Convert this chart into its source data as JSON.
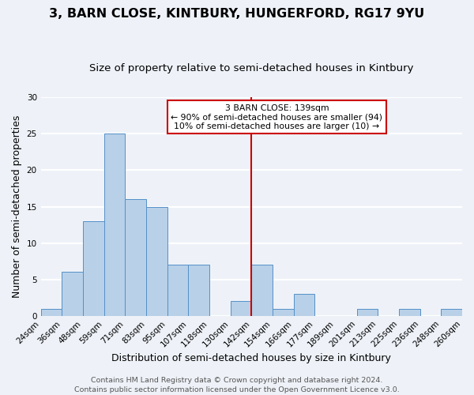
{
  "title": "3, BARN CLOSE, KINTBURY, HUNGERFORD, RG17 9YU",
  "subtitle": "Size of property relative to semi-detached houses in Kintbury",
  "xlabel": "Distribution of semi-detached houses by size in Kintbury",
  "ylabel": "Number of semi-detached properties",
  "bin_labels": [
    "24sqm",
    "36sqm",
    "48sqm",
    "59sqm",
    "71sqm",
    "83sqm",
    "95sqm",
    "107sqm",
    "118sqm",
    "130sqm",
    "142sqm",
    "154sqm",
    "166sqm",
    "177sqm",
    "189sqm",
    "201sqm",
    "213sqm",
    "225sqm",
    "236sqm",
    "248sqm",
    "260sqm"
  ],
  "bar_heights": [
    1,
    6,
    13,
    25,
    16,
    15,
    7,
    7,
    0,
    2,
    7,
    1,
    3,
    0,
    0,
    1,
    0,
    1,
    0,
    1
  ],
  "bar_color": "#b8d0e8",
  "bar_edge_color": "#5590c8",
  "vline_label_idx": 10,
  "vline_color": "#cc0000",
  "annotation_title": "3 BARN CLOSE: 139sqm",
  "annotation_line1": "← 90% of semi-detached houses are smaller (94)",
  "annotation_line2": "10% of semi-detached houses are larger (10) →",
  "annotation_box_color": "#ffffff",
  "annotation_box_edge": "#cc0000",
  "ylim": [
    0,
    30
  ],
  "yticks": [
    0,
    5,
    10,
    15,
    20,
    25,
    30
  ],
  "footer1": "Contains HM Land Registry data © Crown copyright and database right 2024.",
  "footer2": "Contains public sector information licensed under the Open Government Licence v3.0.",
  "background_color": "#eef2f8",
  "grid_color": "#ffffff",
  "title_fontsize": 11.5,
  "subtitle_fontsize": 9.5,
  "axis_label_fontsize": 9,
  "tick_fontsize": 7.5,
  "footer_fontsize": 6.8
}
